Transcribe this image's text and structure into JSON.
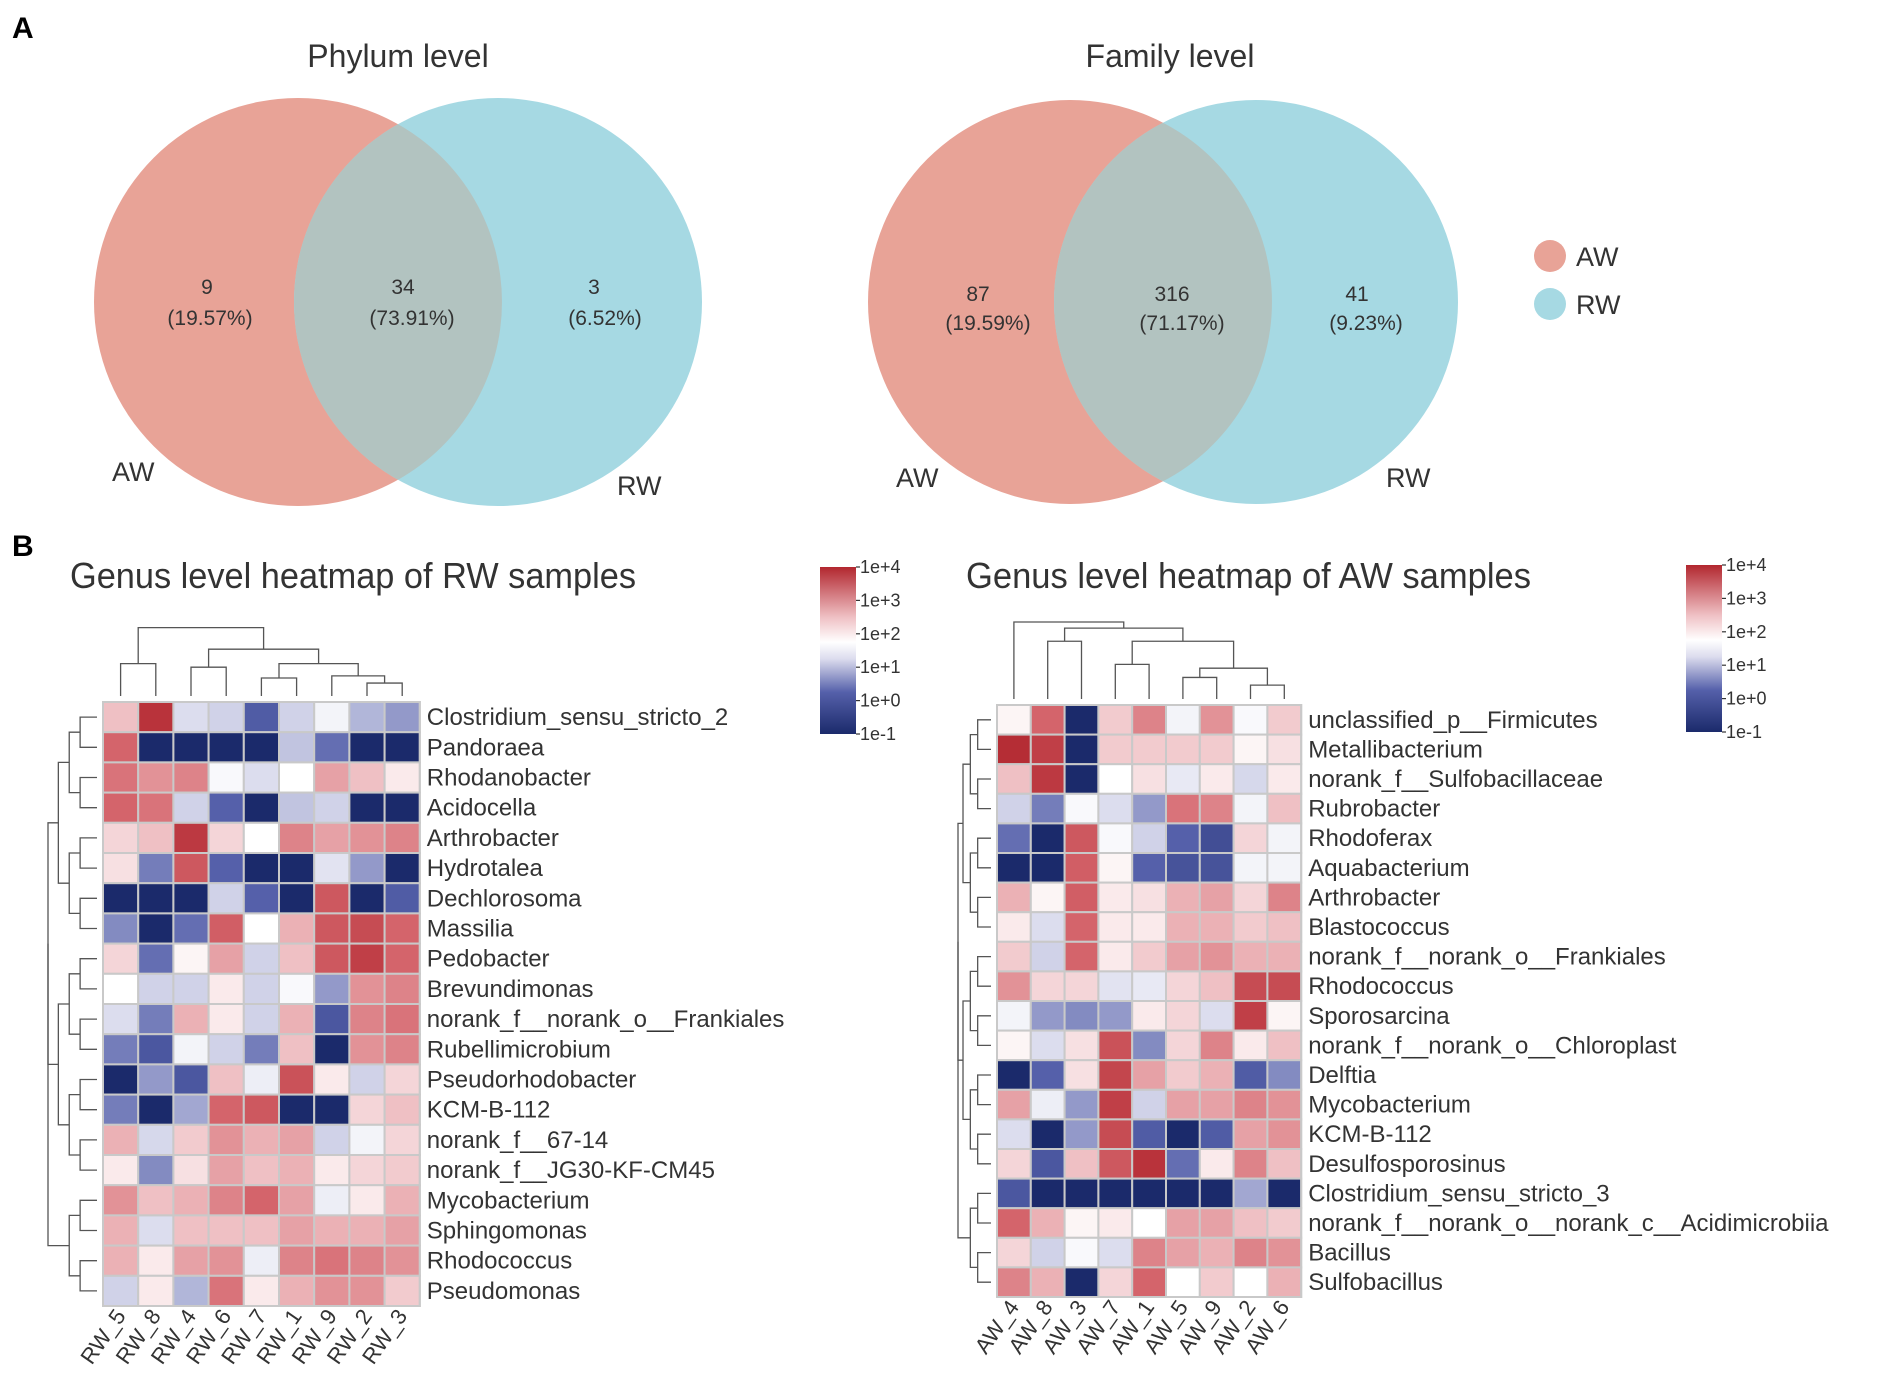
{
  "panel_labels": {
    "a": "A",
    "b": "B"
  },
  "legend": {
    "entries": [
      {
        "label": "AW",
        "color": "#e8a397"
      },
      {
        "label": "RW",
        "color": "#a6d9e3"
      }
    ]
  },
  "colors": {
    "aw": "#e8a397",
    "rw": "#a6d9e3",
    "overlap": "#b2c3c0",
    "low": "#1b2a6b",
    "mid": "#ffffff",
    "high": "#b2272f",
    "grid": "#c8c8c8"
  },
  "chart_data": [
    {
      "type": "venn",
      "title": "Phylum level",
      "sets": [
        {
          "label": "AW"
        },
        {
          "label": "RW"
        }
      ],
      "regions": [
        {
          "name": "AW only",
          "count": "9",
          "percent": "(19.57%)",
          "value": 9
        },
        {
          "name": "shared",
          "count": "34",
          "percent": "(73.91%)",
          "value": 34
        },
        {
          "name": "RW only",
          "count": "3",
          "percent": "(6.52%)",
          "value": 3
        }
      ]
    },
    {
      "type": "venn",
      "title": "Family level",
      "sets": [
        {
          "label": "AW"
        },
        {
          "label": "RW"
        }
      ],
      "regions": [
        {
          "name": "AW only",
          "count": "87",
          "percent": "(19.59%)",
          "value": 87
        },
        {
          "name": "shared",
          "count": "316",
          "percent": "(71.17%)",
          "value": 316
        },
        {
          "name": "RW only",
          "count": "41",
          "percent": "(9.23%)",
          "value": 41
        }
      ]
    },
    {
      "type": "heatmap",
      "title": "Genus level heatmap of RW samples",
      "colorbar": {
        "ticks": [
          "1e+4",
          "1e+3",
          "1e+2",
          "1e+1",
          "1e+0",
          "1e-1"
        ],
        "range_log10": [
          -1,
          4
        ]
      },
      "columns": [
        "RW_5",
        "RW_8",
        "RW_4",
        "RW_6",
        "RW_7",
        "RW_1",
        "RW_9",
        "RW_2",
        "RW_3"
      ],
      "rows": [
        "Clostridium_sensu_stricto_2",
        "Pandoraea",
        "Rhodanobacter",
        "Acidocella",
        "Arthrobacter",
        "Hydrotalea",
        "Dechlorosoma",
        "Massilia",
        "Pedobacter",
        "Brevundimonas",
        "norank_f__norank_o__Frankiales",
        "Rubellimicrobium",
        "Pseudorhodobacter",
        "KCM-B-112",
        "norank_f__67-14",
        "norank_f__JG30-KF-CM45",
        "Mycobacterium",
        "Sphingomonas",
        "Rhodococcus",
        "Pseudomonas"
      ],
      "values_log10": [
        [
          2.4,
          3.8,
          1.2,
          1.0,
          0.1,
          1.0,
          1.6,
          0.8,
          0.6
        ],
        [
          3.0,
          -1.0,
          -1.0,
          -1.0,
          -1.0,
          0.9,
          0.3,
          -1.0,
          -1.0
        ],
        [
          2.9,
          2.7,
          2.8,
          1.7,
          1.2,
          1.8,
          2.6,
          2.4,
          2.0
        ],
        [
          3.0,
          2.9,
          1.0,
          0.2,
          -1.0,
          0.9,
          1.0,
          -1.0,
          -1.0
        ],
        [
          2.2,
          2.4,
          3.7,
          2.2,
          1.8,
          2.8,
          2.6,
          2.7,
          2.8
        ],
        [
          2.1,
          0.4,
          3.2,
          0.2,
          -1.0,
          -1.0,
          1.3,
          0.6,
          -1.0
        ],
        [
          -1.0,
          -1.0,
          -1.0,
          1.0,
          0.2,
          -1.0,
          3.2,
          -1.0,
          0.1
        ],
        [
          0.5,
          -1.0,
          0.3,
          3.1,
          1.8,
          2.5,
          3.2,
          3.4,
          3.0
        ],
        [
          2.2,
          0.3,
          1.9,
          2.6,
          1.0,
          2.4,
          3.2,
          3.6,
          3.0
        ],
        [
          1.8,
          1.0,
          1.0,
          2.0,
          1.0,
          1.7,
          0.6,
          2.7,
          2.8
        ],
        [
          1.2,
          0.4,
          2.5,
          2.0,
          1.0,
          2.5,
          0.0,
          2.8,
          2.9
        ],
        [
          0.4,
          0.0,
          1.6,
          1.0,
          0.4,
          2.4,
          -1.0,
          2.7,
          2.8
        ],
        [
          -1.0,
          0.6,
          0.0,
          2.4,
          1.5,
          3.3,
          2.0,
          1.0,
          2.2
        ],
        [
          0.4,
          -1.0,
          0.7,
          3.0,
          3.2,
          -1.0,
          -1.0,
          2.2,
          2.4
        ],
        [
          2.5,
          1.1,
          2.3,
          2.7,
          2.5,
          2.6,
          1.0,
          1.6,
          2.2
        ],
        [
          2.0,
          0.5,
          2.1,
          2.6,
          2.4,
          2.5,
          2.0,
          2.2,
          2.3
        ],
        [
          2.7,
          2.4,
          2.5,
          2.8,
          3.0,
          2.6,
          1.5,
          2.0,
          2.5
        ],
        [
          2.5,
          1.2,
          2.4,
          2.4,
          2.4,
          2.6,
          2.5,
          2.5,
          2.6
        ],
        [
          2.5,
          2.0,
          2.6,
          2.7,
          1.5,
          2.8,
          2.9,
          2.8,
          2.7
        ],
        [
          1.0,
          2.0,
          0.8,
          2.9,
          2.0,
          2.5,
          2.7,
          2.7,
          2.3
        ]
      ]
    },
    {
      "type": "heatmap",
      "title": "Genus level heatmap of AW samples",
      "colorbar": {
        "ticks": [
          "1e+4",
          "1e+3",
          "1e+2",
          "1e+1",
          "1e+0",
          "1e-1"
        ],
        "range_log10": [
          -1,
          4
        ]
      },
      "columns": [
        "AW_4",
        "AW_8",
        "AW_3",
        "AW_7",
        "AW_1",
        "AW_5",
        "AW_9",
        "AW_2",
        "AW_6"
      ],
      "rows": [
        "unclassified_p__Firmicutes",
        "Metallibacterium",
        "norank_f__Sulfobacillaceae",
        "Rubrobacter",
        "Rhodoferax",
        "Aquabacterium",
        "Arthrobacter",
        "Blastococcus",
        "norank_f__norank_o__Frankiales",
        "Rhodococcus",
        "Sporosarcina",
        "norank_f__norank_o__Chloroplast",
        "Delftia",
        "Mycobacterium",
        "KCM-B-112",
        "Desulfosporosinus",
        "Clostridium_sensu_stricto_3",
        "norank_f__norank_o__norank_c__Acidimicrobiia",
        "Bacillus",
        "Sulfobacillus"
      ],
      "values_log10": [
        [
          1.9,
          3.0,
          -1.0,
          2.3,
          2.8,
          1.6,
          2.7,
          1.7,
          2.3
        ],
        [
          3.9,
          3.6,
          -1.0,
          2.3,
          2.3,
          2.3,
          2.3,
          1.9,
          2.1
        ],
        [
          2.4,
          3.7,
          -1.0,
          1.8,
          2.1,
          1.4,
          2.0,
          1.1,
          2.0
        ],
        [
          1.0,
          0.4,
          1.7,
          1.2,
          0.6,
          2.9,
          2.8,
          1.6,
          2.4
        ],
        [
          0.3,
          -1.0,
          3.2,
          1.7,
          1.0,
          0.2,
          -0.2,
          2.2,
          1.6
        ],
        [
          -1.0,
          -1.0,
          3.1,
          1.9,
          0.2,
          -0.1,
          -0.1,
          1.6,
          1.6
        ],
        [
          2.5,
          1.9,
          3.1,
          2.0,
          2.1,
          2.5,
          2.6,
          2.2,
          2.8
        ],
        [
          2.0,
          1.2,
          3.0,
          2.0,
          2.0,
          2.5,
          2.5,
          2.3,
          2.4
        ],
        [
          2.3,
          1.0,
          3.0,
          2.0,
          2.3,
          2.6,
          2.7,
          2.5,
          2.5
        ],
        [
          2.7,
          2.2,
          2.2,
          1.3,
          1.4,
          2.2,
          2.4,
          3.4,
          3.4
        ],
        [
          1.6,
          0.6,
          0.5,
          0.6,
          2.0,
          2.2,
          1.2,
          3.6,
          1.9
        ],
        [
          1.9,
          1.2,
          2.1,
          3.3,
          0.5,
          2.2,
          2.8,
          2.0,
          2.4
        ],
        [
          -1.0,
          0.2,
          2.1,
          3.5,
          2.6,
          2.3,
          2.5,
          0.1,
          0.5
        ],
        [
          2.6,
          1.5,
          0.6,
          3.6,
          1.0,
          2.6,
          2.6,
          2.8,
          2.7
        ],
        [
          1.2,
          -1.0,
          0.6,
          3.4,
          0.1,
          -1.0,
          0.1,
          2.6,
          2.7
        ],
        [
          2.2,
          0.0,
          2.4,
          3.2,
          3.8,
          0.3,
          2.0,
          2.8,
          2.4
        ],
        [
          0.0,
          -1.0,
          -1.0,
          -1.0,
          -1.0,
          -1.0,
          -1.0,
          0.7,
          -1.0
        ],
        [
          3.0,
          2.5,
          1.9,
          2.0,
          1.8,
          2.6,
          2.6,
          2.4,
          2.3
        ],
        [
          2.2,
          1.0,
          1.7,
          1.2,
          2.8,
          2.6,
          2.5,
          2.8,
          2.7
        ],
        [
          2.8,
          2.5,
          -1.0,
          2.2,
          3.0,
          1.8,
          2.3,
          1.8,
          2.5
        ]
      ]
    }
  ]
}
